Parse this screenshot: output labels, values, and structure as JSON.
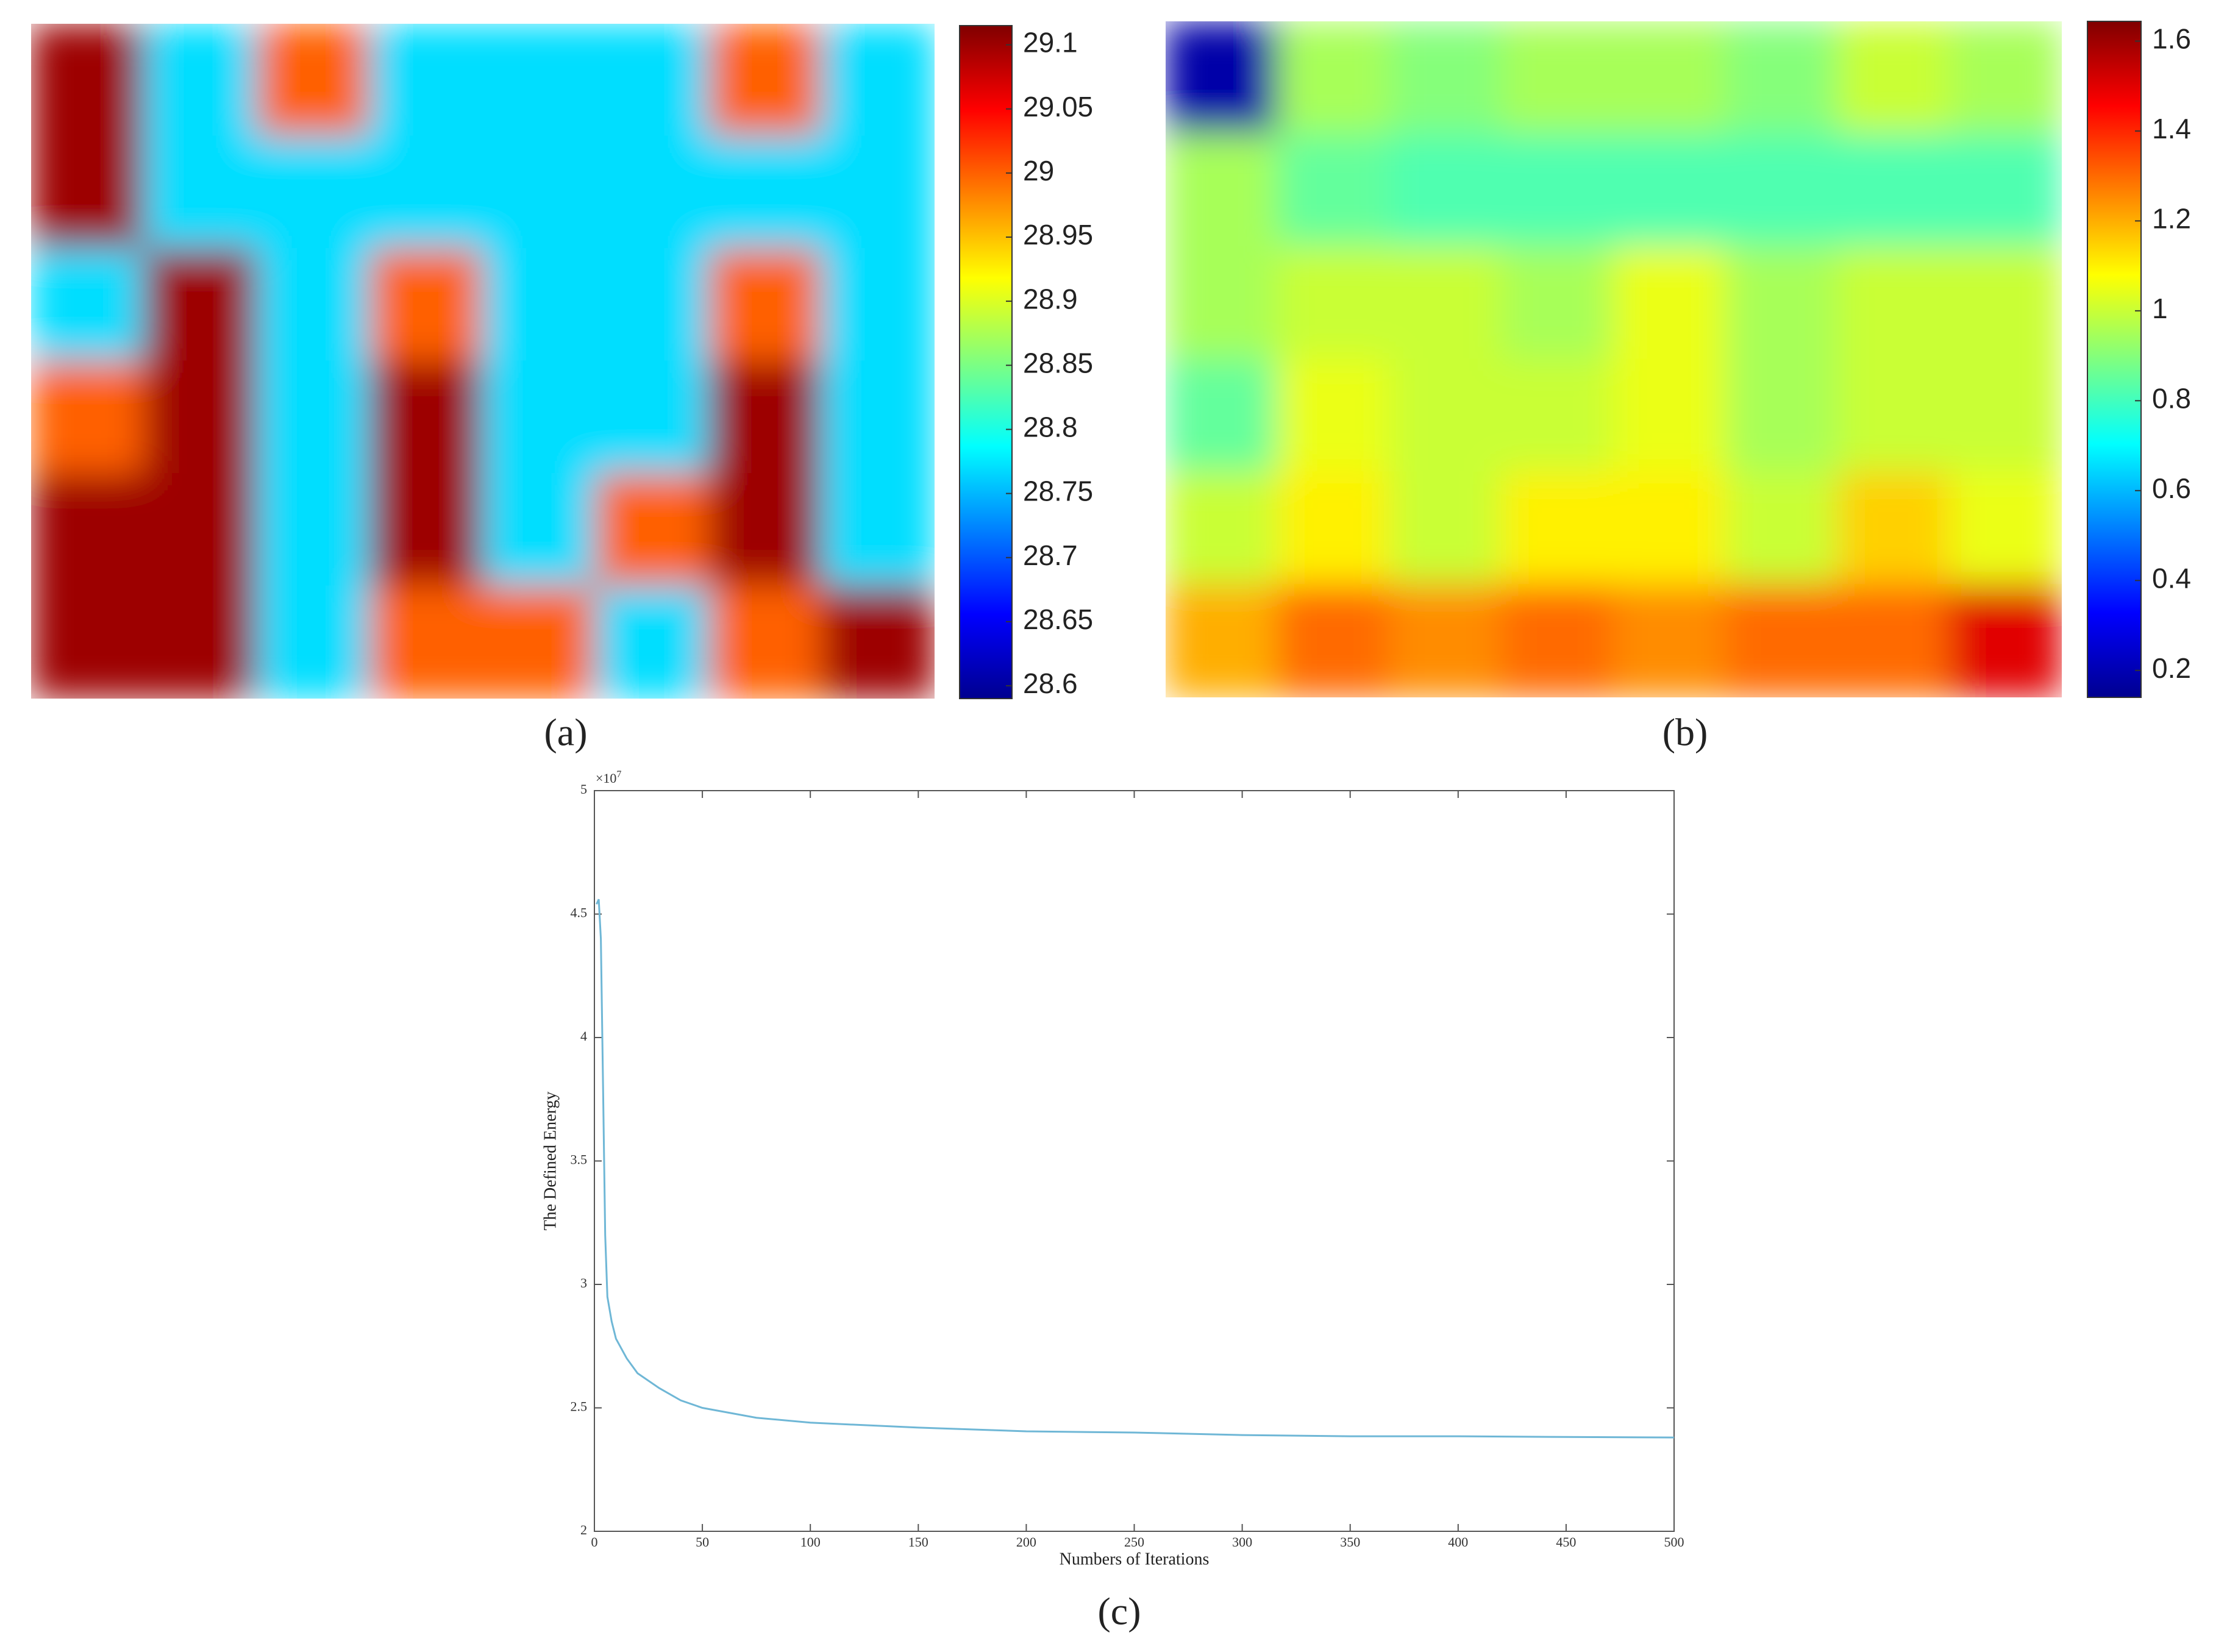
{
  "chart_data": [
    {
      "type": "heatmap",
      "label": "(a)",
      "colormap": "jet",
      "clim": [
        28.59,
        29.115
      ],
      "cticks": [
        28.6,
        28.65,
        28.7,
        28.75,
        28.8,
        28.85,
        28.9,
        28.95,
        29,
        29.05,
        29.1
      ],
      "z": [
        [
          29.1,
          28.77,
          29.0,
          28.77,
          28.77,
          28.77,
          29.0,
          28.77
        ],
        [
          29.1,
          28.77,
          28.77,
          28.77,
          28.77,
          28.77,
          28.77,
          28.77
        ],
        [
          28.77,
          29.1,
          28.77,
          29.0,
          28.77,
          28.77,
          29.0,
          28.77
        ],
        [
          29.0,
          29.1,
          28.77,
          29.1,
          28.77,
          28.77,
          29.1,
          28.77
        ],
        [
          29.1,
          29.1,
          28.77,
          29.1,
          28.77,
          29.0,
          29.1,
          28.77
        ],
        [
          29.1,
          29.1,
          28.77,
          29.0,
          29.0,
          28.77,
          29.0,
          29.1
        ]
      ]
    },
    {
      "type": "heatmap",
      "label": "(b)",
      "colormap": "jet",
      "clim": [
        0.14,
        1.644
      ],
      "cticks": [
        0.2,
        0.4,
        0.6,
        0.8,
        1,
        1.2,
        1.4,
        1.6
      ],
      "z": [
        [
          0.2,
          0.95,
          0.9,
          0.95,
          0.95,
          0.9,
          1.0,
          0.95
        ],
        [
          0.95,
          0.85,
          0.82,
          0.82,
          0.82,
          0.82,
          0.82,
          0.82
        ],
        [
          0.95,
          1.0,
          1.0,
          0.95,
          1.05,
          0.95,
          1.0,
          1.0
        ],
        [
          0.85,
          1.05,
          1.0,
          1.0,
          1.05,
          0.95,
          1.0,
          1.0
        ],
        [
          1.0,
          1.1,
          1.0,
          1.1,
          1.1,
          1.0,
          1.15,
          1.05
        ],
        [
          1.2,
          1.3,
          1.25,
          1.3,
          1.25,
          1.3,
          1.3,
          1.5
        ]
      ]
    },
    {
      "type": "line",
      "label": "(c)",
      "xlabel": "Numbers of Iterations",
      "ylabel": "The Defined Energy",
      "y_multiplier": "×10",
      "y_multiplier_exponent": "7",
      "color": "#6fb7d6",
      "xlim": [
        0,
        500
      ],
      "xticks": [
        0,
        50,
        100,
        150,
        200,
        250,
        300,
        350,
        400,
        450,
        500
      ],
      "ylim": [
        20000000,
        50000000
      ],
      "yticks": [
        {
          "value": 20000000,
          "label": "2"
        },
        {
          "value": 25000000,
          "label": "2.5"
        },
        {
          "value": 30000000,
          "label": "3"
        },
        {
          "value": 35000000,
          "label": "3.5"
        },
        {
          "value": 40000000,
          "label": "4"
        },
        {
          "value": 45000000,
          "label": "4.5"
        },
        {
          "value": 50000000,
          "label": "5"
        }
      ],
      "x": [
        1,
        2,
        3,
        4,
        5,
        6,
        8,
        10,
        15,
        20,
        30,
        40,
        50,
        75,
        100,
        150,
        200,
        250,
        300,
        350,
        400,
        450,
        500
      ],
      "values": [
        45400000,
        45600000,
        44000000,
        38000000,
        32000000,
        29500000,
        28500000,
        27800000,
        27000000,
        26400000,
        25800000,
        25300000,
        25000000,
        24600000,
        24400000,
        24200000,
        24050000,
        24000000,
        23900000,
        23850000,
        23850000,
        23820000,
        23800000
      ]
    }
  ]
}
